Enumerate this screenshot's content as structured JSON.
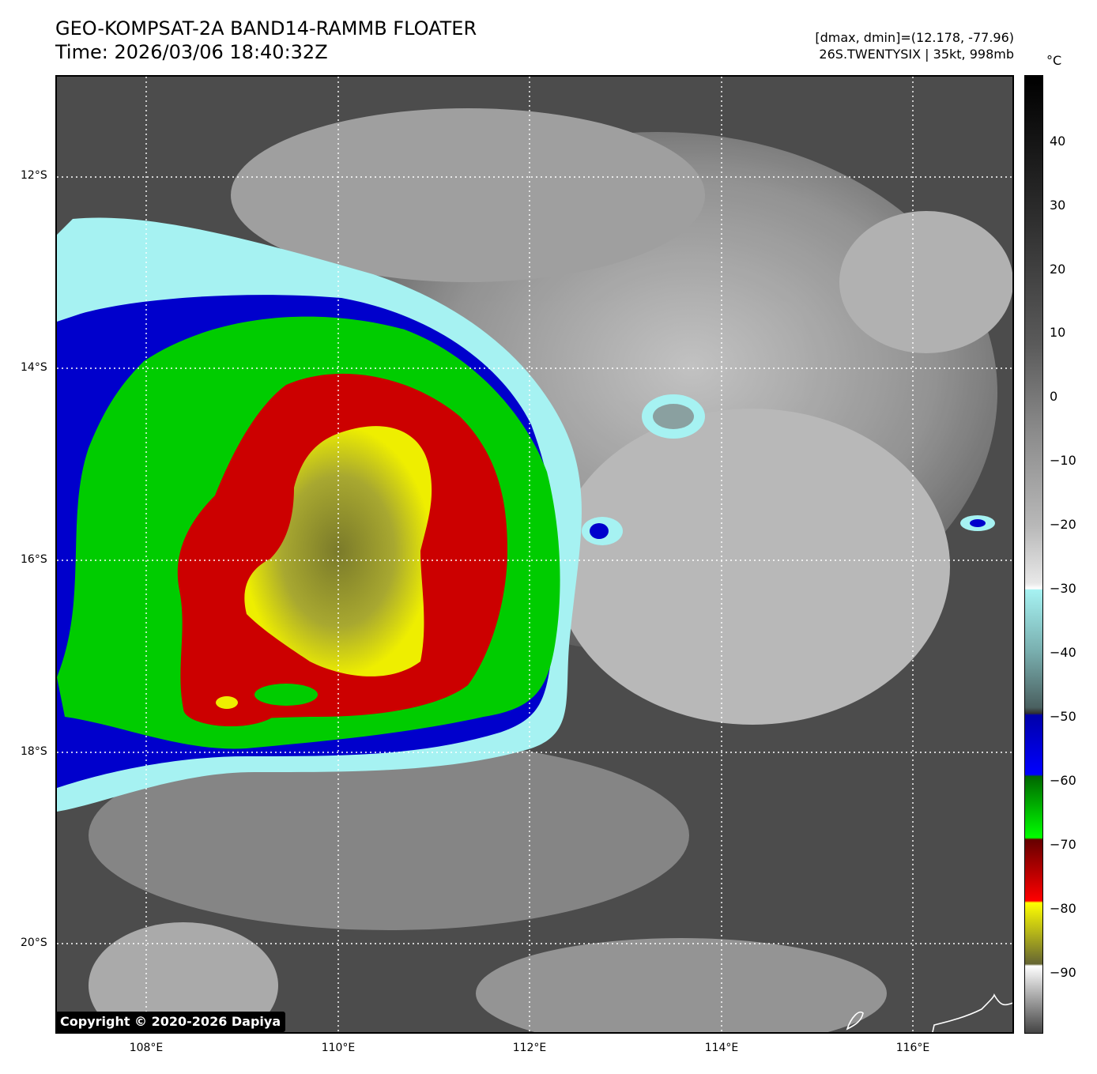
{
  "title_line1": "GEO-KOMPSAT-2A BAND14-RAMMB FLOATER",
  "title_line2": "Time: 2026/03/06 18:40:32Z",
  "info_line1": "[dmax, dmin]=(12.178, -77.96)",
  "info_line2": "26S.TWENTYSIX | 35kt, 998mb",
  "colorbar": {
    "unit": "°C",
    "labels": [
      "40",
      "30",
      "20",
      "10",
      "0",
      "−10",
      "−20",
      "−30",
      "−40",
      "−50",
      "−60",
      "−70",
      "−80",
      "−90"
    ]
  },
  "lat_labels": [
    "12°S",
    "14°S",
    "16°S",
    "18°S",
    "20°S"
  ],
  "lon_labels": [
    "108°E",
    "110°E",
    "112°E",
    "114°E",
    "116°E"
  ],
  "copyright": "Copyright © 2020-2026 Dapiya",
  "colors": {
    "enhancement_cyan": "#a6f2f2",
    "enhancement_blue": "#0000cc",
    "enhancement_green": "#00cc00",
    "enhancement_red": "#cc0000",
    "enhancement_yellow": "#eeee00",
    "background_gray": "#4a4a4a"
  }
}
